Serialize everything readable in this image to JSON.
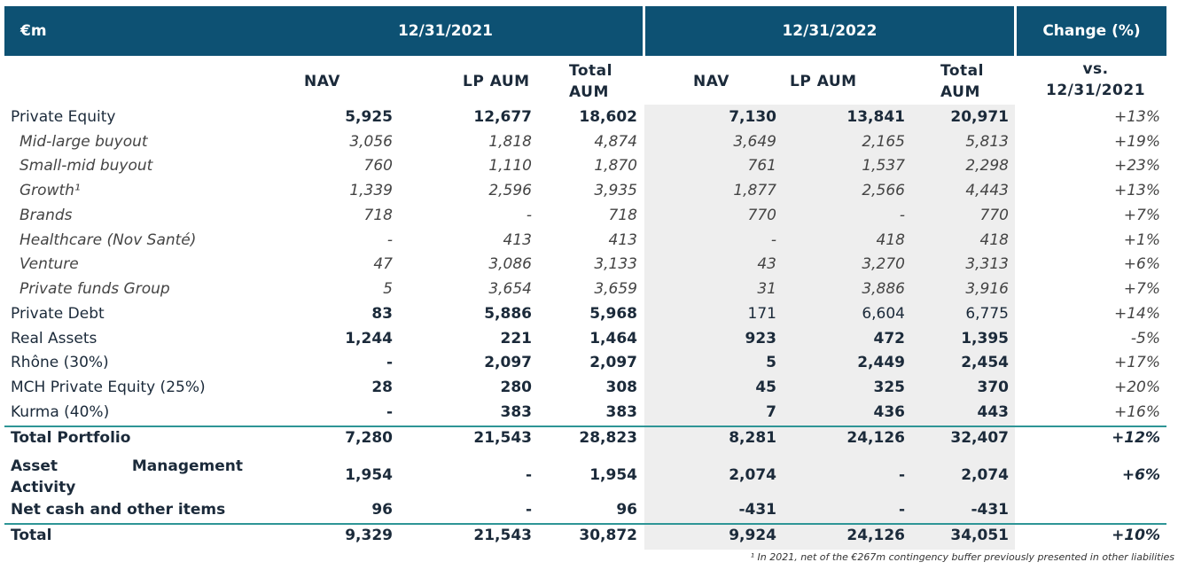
{
  "header": {
    "currency": "€m",
    "period1": "12/31/2021",
    "period2": "12/31/2022",
    "change": "Change (%)"
  },
  "subheader": {
    "nav1": "NAV",
    "lp1": "LP AUM",
    "total1": "Total\nAUM",
    "nav2": "NAV",
    "lp2": "LP AUM",
    "total2": "Total\nAUM",
    "vs": "vs.\n12/31/2021"
  },
  "rows": [
    {
      "label": "Private Equity",
      "v": [
        "5,925",
        "12,677",
        "18,602",
        "7,130",
        "13,841",
        "20,971",
        "+13%"
      ]
    },
    {
      "label": "Mid-large buyout",
      "v": [
        "3,056",
        "1,818",
        "4,874",
        "3,649",
        "2,165",
        "5,813",
        "+19%"
      ]
    },
    {
      "label": "Small-mid buyout",
      "v": [
        "760",
        "1,110",
        "1,870",
        "761",
        "1,537",
        "2,298",
        "+23%"
      ]
    },
    {
      "label": "Growth¹",
      "v": [
        "1,339",
        "2,596",
        "3,935",
        "1,877",
        "2,566",
        "4,443",
        "+13%"
      ]
    },
    {
      "label": "Brands",
      "v": [
        "718",
        "-",
        "718",
        "770",
        "-",
        "770",
        "+7%"
      ]
    },
    {
      "label": "Healthcare (Nov Santé)",
      "v": [
        "-",
        "413",
        "413",
        "-",
        "418",
        "418",
        "+1%"
      ]
    },
    {
      "label": "Venture",
      "v": [
        "47",
        "3,086",
        "3,133",
        "43",
        "3,270",
        "3,313",
        "+6%"
      ]
    },
    {
      "label": "Private funds Group",
      "v": [
        "5",
        "3,654",
        "3,659",
        "31",
        "3,886",
        "3,916",
        "+7%"
      ]
    },
    {
      "label": "Private Debt",
      "v": [
        "83",
        "5,886",
        "5,968",
        "171",
        "6,604",
        "6,775",
        "+14%"
      ]
    },
    {
      "label": "Real Assets",
      "v": [
        "1,244",
        "221",
        "1,464",
        "923",
        "472",
        "1,395",
        "-5%"
      ]
    },
    {
      "label": "Rhône (30%)",
      "v": [
        "-",
        "2,097",
        "2,097",
        "5",
        "2,449",
        "2,454",
        "+17%"
      ]
    },
    {
      "label": "MCH Private Equity (25%)",
      "v": [
        "28",
        "280",
        "308",
        "45",
        "325",
        "370",
        "+20%"
      ]
    },
    {
      "label": "Kurma (40%)",
      "v": [
        "-",
        "383",
        "383",
        "7",
        "436",
        "443",
        "+16%"
      ]
    },
    {
      "label": "Total Portfolio",
      "v": [
        "7,280",
        "21,543",
        "28,823",
        "8,281",
        "24,126",
        "32,407",
        "+12%"
      ]
    },
    {
      "label": "Asset Management Activity",
      "v": [
        "1,954",
        "-",
        "1,954",
        "2,074",
        "-",
        "2,074",
        "+6%"
      ]
    },
    {
      "label": "Net cash and other items",
      "v": [
        "96",
        "-",
        "96",
        "-431",
        "-",
        "-431",
        ""
      ]
    },
    {
      "label": "Total",
      "v": [
        "9,329",
        "21,543",
        "30,872",
        "9,924",
        "24,126",
        "34,051",
        "+10%"
      ]
    }
  ],
  "footnote": "¹ In 2021, net of the €267m contingency buffer previously presented in other liabilities"
}
